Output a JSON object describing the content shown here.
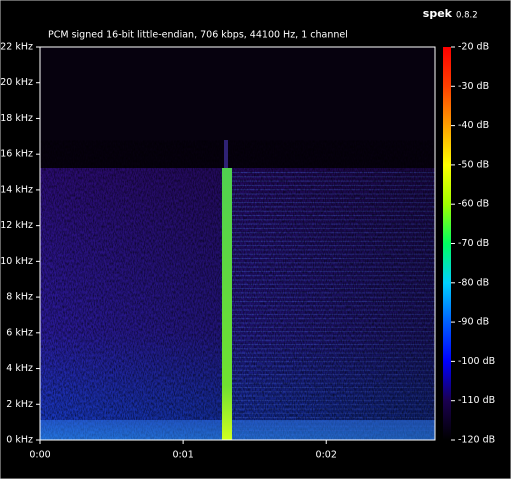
{
  "app": {
    "name": "spek",
    "version": "0.8.2"
  },
  "chart_data": {
    "type": "spectrogram",
    "title": "PCM signed 16-bit little-endian, 706 kbps, 44100 Hz, 1 channel",
    "xlim": [
      0,
      2.76
    ],
    "xticks": [
      {
        "value": 0,
        "label": "0:00"
      },
      {
        "value": 1,
        "label": "0:01"
      },
      {
        "value": 2,
        "label": "0:02"
      }
    ],
    "ylim": [
      0,
      22
    ],
    "yticks": [
      {
        "value": 0,
        "label": "0 kHz"
      },
      {
        "value": 2,
        "label": "2 kHz"
      },
      {
        "value": 4,
        "label": "4 kHz"
      },
      {
        "value": 6,
        "label": "6 kHz"
      },
      {
        "value": 8,
        "label": "8 kHz"
      },
      {
        "value": 10,
        "label": "10 kHz"
      },
      {
        "value": 12,
        "label": "12 kHz"
      },
      {
        "value": 14,
        "label": "14 kHz"
      },
      {
        "value": 16,
        "label": "16 kHz"
      },
      {
        "value": 18,
        "label": "18 kHz"
      },
      {
        "value": 20,
        "label": "20 kHz"
      },
      {
        "value": 22,
        "label": "22 kHz"
      }
    ],
    "zlim": [
      -120,
      -20
    ],
    "zticks": [
      {
        "value": -120,
        "label": "-120 dB"
      },
      {
        "value": -110,
        "label": "-110 dB"
      },
      {
        "value": -100,
        "label": "-100 dB"
      },
      {
        "value": -90,
        "label": "-90 dB"
      },
      {
        "value": -80,
        "label": "-80 dB"
      },
      {
        "value": -70,
        "label": "-70 dB"
      },
      {
        "value": -60,
        "label": "-60 dB"
      },
      {
        "value": -50,
        "label": "-50 dB"
      },
      {
        "value": -40,
        "label": "-40 dB"
      },
      {
        "value": -30,
        "label": "-30 dB"
      },
      {
        "value": -20,
        "label": "-20 dB"
      }
    ],
    "colorscale": [
      "#000000",
      "#1a0050",
      "#0000ff",
      "#0060ff",
      "#00d0ff",
      "#00ff60",
      "#a0ff00",
      "#ffff00",
      "#ffa000",
      "#ff4000",
      "#ff0000"
    ]
  }
}
